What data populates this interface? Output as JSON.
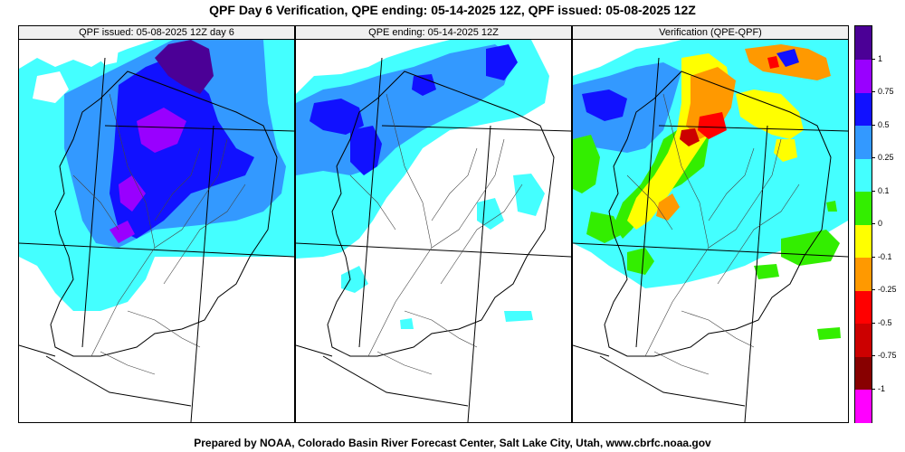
{
  "title": "QPF Day 6 Verification, QPE ending: 05-14-2025 12Z, QPF issued: 05-08-2025 12Z",
  "panels": [
    {
      "title": "QPF issued: 05-08-2025 12Z day 6"
    },
    {
      "title": "QPE ending: 05-14-2025 12Z"
    },
    {
      "title": "Verification (QPE-QPF)"
    }
  ],
  "colorbar": {
    "colors": [
      "#ff00ff",
      "#880000",
      "#cc0000",
      "#ff0000",
      "#ff9900",
      "#ffff00",
      "#33ee00",
      "#44ffff",
      "#3399ff",
      "#1111ff",
      "#9900ff",
      "#4b0096"
    ],
    "ticks": [
      "1",
      "0.75",
      "0.5",
      "0.25",
      "0.1",
      "0",
      "-0.1",
      "-0.25",
      "-0.5",
      "-0.75",
      "-1"
    ]
  },
  "footer": "Prepared by NOAA, Colorado Basin River Forecast Center, Salt Lake City, Utah, www.cbrfc.noaa.gov"
}
